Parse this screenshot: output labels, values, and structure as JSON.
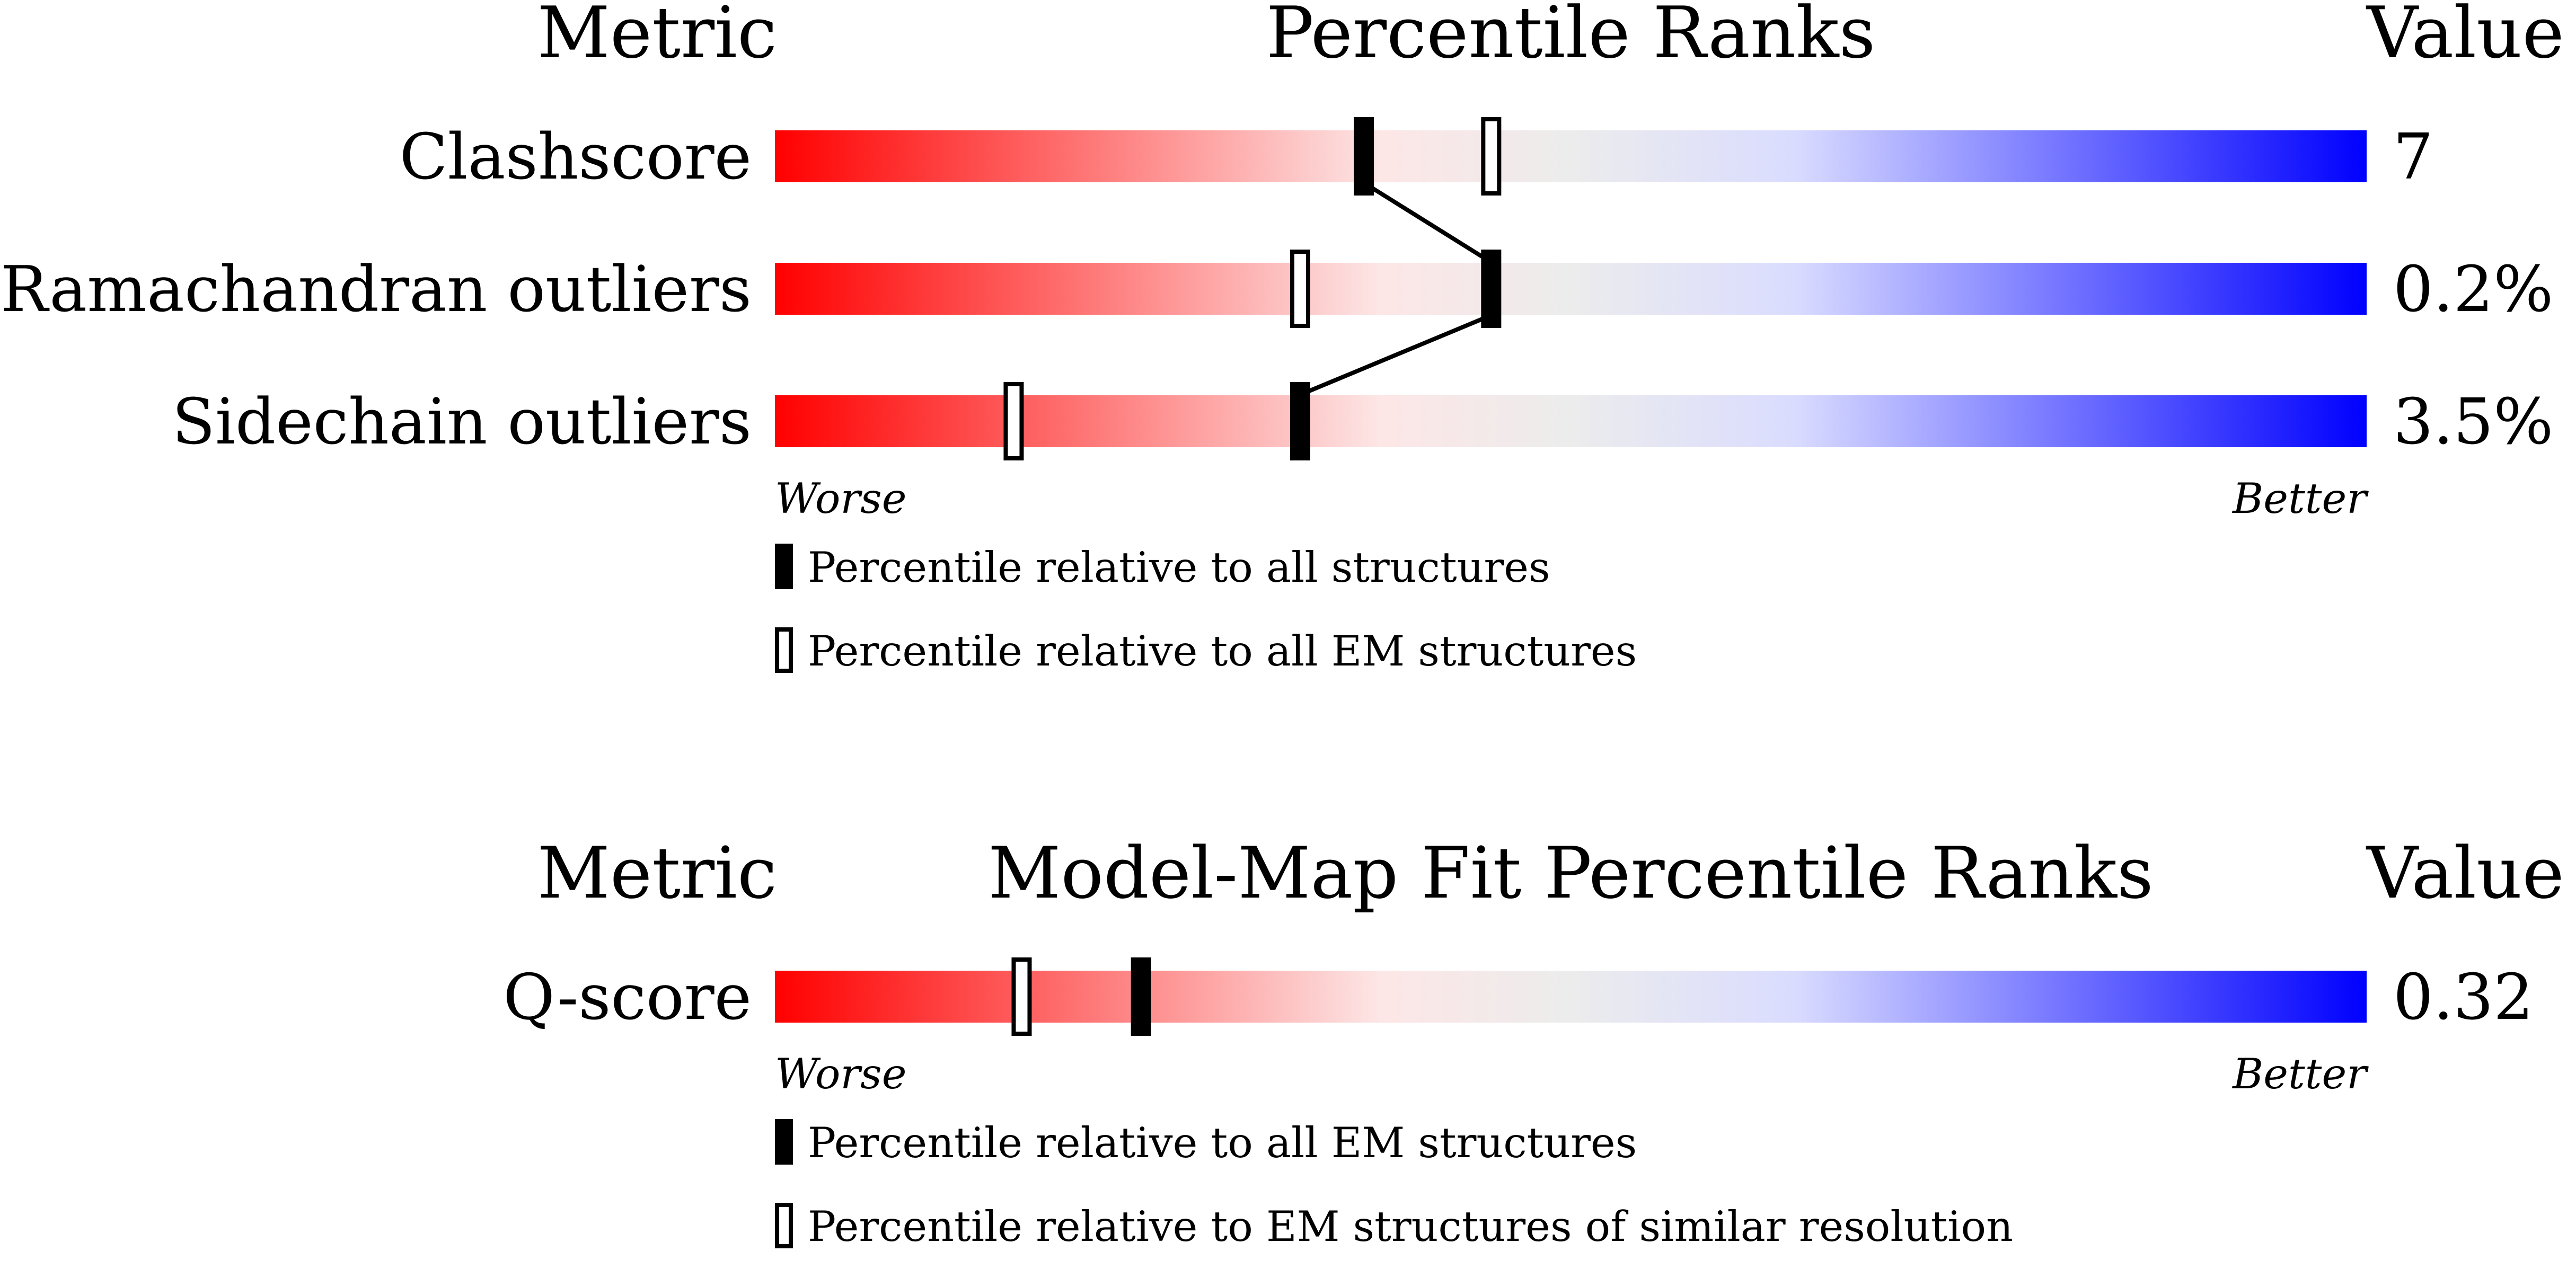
{
  "chart_data": [
    {
      "type": "bar",
      "header": {
        "metric": "Metric",
        "title": "Percentile Ranks",
        "value": "Value"
      },
      "axis": {
        "left": "Worse",
        "right": "Better"
      },
      "xlim": [
        0,
        100
      ],
      "rows": [
        {
          "metric": "Clashscore",
          "value": "7",
          "all": 37,
          "em": 45
        },
        {
          "metric": "Ramachandran outliers",
          "value": "0.2%",
          "all": 45,
          "em": 33
        },
        {
          "metric": "Sidechain outliers",
          "value": "3.5%",
          "all": 33,
          "em": 15
        }
      ],
      "legend": {
        "filled": "Percentile relative to all structures",
        "open": "Percentile relative to all EM structures"
      }
    },
    {
      "type": "bar",
      "header": {
        "metric": "Metric",
        "title": "Model-Map Fit Percentile Ranks",
        "value": "Value"
      },
      "axis": {
        "left": "Worse",
        "right": "Better"
      },
      "xlim": [
        0,
        100
      ],
      "rows": [
        {
          "metric": "Q-score",
          "value": "0.32",
          "all": 23,
          "em": 15.5
        }
      ],
      "legend": {
        "filled": "Percentile relative to all EM structures",
        "open": "Percentile relative to EM structures of similar resolution"
      }
    }
  ]
}
